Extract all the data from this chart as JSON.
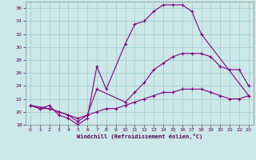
{
  "xlabel": "Windchill (Refroidissement éolien,°C)",
  "bg_color": "#cce8e8",
  "line_color": "#800080",
  "grid_color": "#a0c8c8",
  "xlim": [
    -0.5,
    23.5
  ],
  "ylim": [
    18,
    37
  ],
  "xticks": [
    0,
    1,
    2,
    3,
    4,
    5,
    6,
    7,
    8,
    9,
    10,
    11,
    12,
    13,
    14,
    15,
    16,
    17,
    18,
    19,
    20,
    21,
    22,
    23
  ],
  "yticks": [
    18,
    20,
    22,
    24,
    26,
    28,
    30,
    32,
    34,
    36
  ],
  "line1_x": [
    0,
    1,
    2,
    3,
    4,
    5,
    6,
    7,
    8,
    10,
    11,
    12,
    13,
    14,
    15,
    16,
    17,
    18,
    23
  ],
  "line1_y": [
    21.0,
    20.5,
    21.0,
    19.5,
    19.0,
    18.0,
    19.0,
    27.0,
    23.5,
    30.5,
    33.5,
    34.0,
    35.5,
    36.5,
    36.5,
    36.5,
    35.5,
    32.0,
    22.5
  ],
  "line2_x": [
    0,
    2,
    3,
    4,
    5,
    6,
    7,
    10,
    11,
    12,
    13,
    14,
    15,
    16,
    17,
    18,
    19,
    20,
    21,
    22,
    23
  ],
  "line2_y": [
    21.0,
    20.5,
    20.0,
    19.5,
    18.5,
    19.5,
    23.5,
    21.5,
    23.0,
    24.5,
    26.5,
    27.5,
    28.5,
    29.0,
    29.0,
    29.0,
    28.5,
    27.0,
    26.5,
    26.5,
    24.0
  ],
  "line3_x": [
    0,
    1,
    2,
    3,
    4,
    5,
    6,
    7,
    8,
    9,
    10,
    11,
    12,
    13,
    14,
    15,
    16,
    17,
    18,
    19,
    20,
    21,
    22,
    23
  ],
  "line3_y": [
    21.0,
    20.5,
    20.5,
    20.0,
    19.5,
    19.0,
    19.5,
    20.0,
    20.5,
    20.5,
    21.0,
    21.5,
    22.0,
    22.5,
    23.0,
    23.0,
    23.5,
    23.5,
    23.5,
    23.0,
    22.5,
    22.0,
    22.0,
    22.5
  ]
}
